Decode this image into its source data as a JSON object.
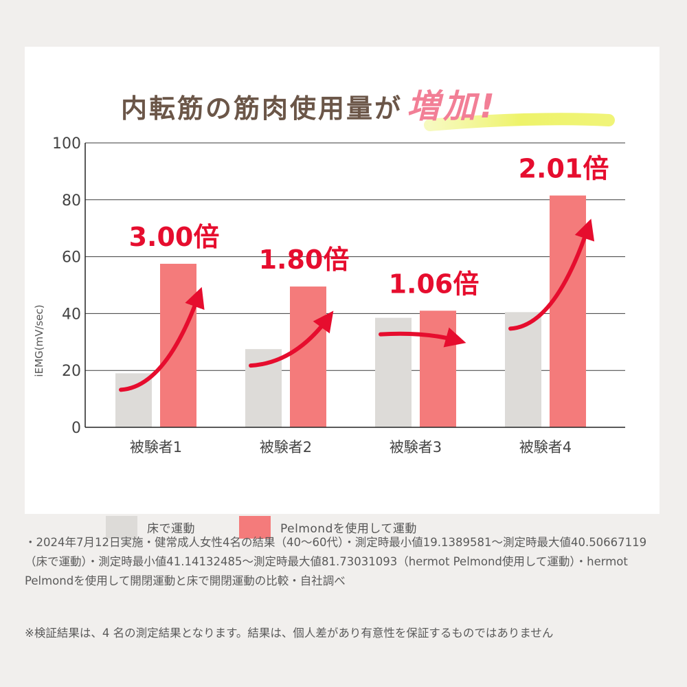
{
  "chart_data": {
    "type": "bar",
    "title_main": "内転筋の筋肉使用量が",
    "title_highlight": "増加!",
    "ylabel": "iEMG(mV/sec)",
    "ylim": [
      0,
      100
    ],
    "yticks": [
      0,
      20,
      40,
      60,
      80,
      100
    ],
    "categories": [
      "被験者1",
      "被験者2",
      "被験者3",
      "被験者4"
    ],
    "series": [
      {
        "name": "床で運動",
        "color": "#dddbd8",
        "values": [
          19,
          27.5,
          38.5,
          40.5
        ]
      },
      {
        "name": "Pelmondを使用して運動",
        "color": "#f47b7b",
        "values": [
          57.5,
          49.5,
          41,
          81.5
        ]
      }
    ],
    "annotations": [
      "3.00倍",
      "1.80倍",
      "1.06倍",
      "2.01倍"
    ],
    "annotation_color": "#e60d2e",
    "grid": true,
    "legend_position": "bottom"
  },
  "notes": "・2024年7月12日実施・健常成人女性4名の結果（40〜60代）・測定時最小値19.1389581〜測定時最大値40.50667119（床で運動）・測定時最小値41.14132485〜測定時最大値81.73031093（hermot Pelmond使用して運動）・hermot Pelmondを使用して開閉運動と床で開閉運動の比較・自社調べ",
  "disclaimer": "※検証結果は、4 名の測定結果となります。結果は、個人差があり有意性を保証するものではありません"
}
